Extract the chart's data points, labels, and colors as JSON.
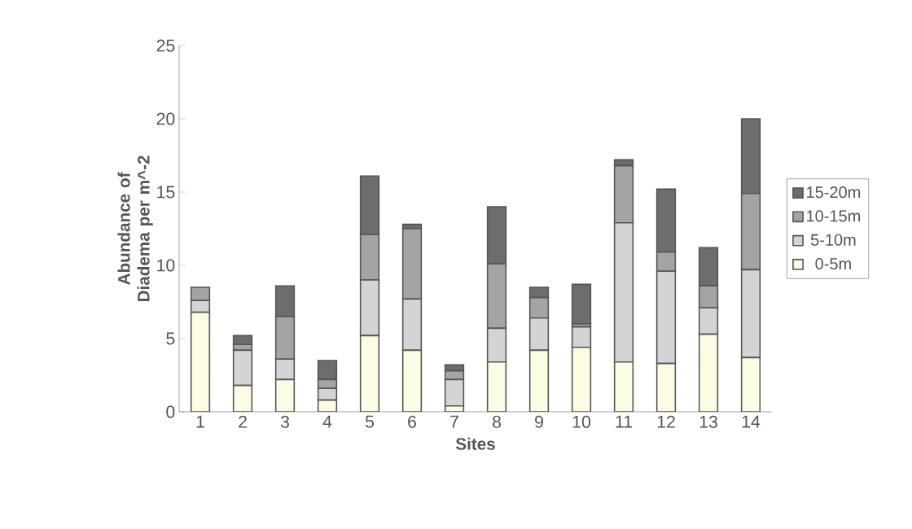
{
  "chart_data": {
    "type": "bar",
    "stacked": true,
    "xlabel": "Sites",
    "ylabel": "Abundance of Diadema per m^-2",
    "categories": [
      "1",
      "2",
      "3",
      "4",
      "5",
      "6",
      "7",
      "8",
      "9",
      "10",
      "11",
      "12",
      "13",
      "14"
    ],
    "series": [
      {
        "name": "0-5m",
        "color": "#fcfbe4",
        "values": [
          6.8,
          1.8,
          2.2,
          0.8,
          5.2,
          4.2,
          0.4,
          3.4,
          4.2,
          4.4,
          3.4,
          3.3,
          5.3,
          3.7
        ]
      },
      {
        "name": "5-10m",
        "color": "#d4d4d4",
        "values": [
          0.8,
          2.4,
          1.4,
          0.8,
          3.8,
          3.5,
          1.8,
          2.3,
          2.2,
          1.4,
          9.5,
          6.3,
          1.8,
          6.0
        ]
      },
      {
        "name": "10-15m",
        "color": "#a4a4a4",
        "values": [
          0.9,
          0.4,
          2.9,
          0.6,
          3.1,
          4.8,
          0.6,
          4.4,
          1.4,
          0.2,
          3.9,
          1.3,
          1.5,
          5.2
        ]
      },
      {
        "name": "15-20m",
        "color": "#6b6e6c",
        "values": [
          0,
          0.6,
          2.1,
          1.3,
          4.0,
          0.3,
          0.4,
          3.9,
          0.7,
          2.7,
          0.4,
          4.3,
          2.6,
          5.1
        ]
      }
    ],
    "ylim": [
      0,
      25
    ],
    "yticks": [
      0,
      5,
      10,
      15,
      20,
      25
    ],
    "grid": false,
    "legend": "right"
  }
}
